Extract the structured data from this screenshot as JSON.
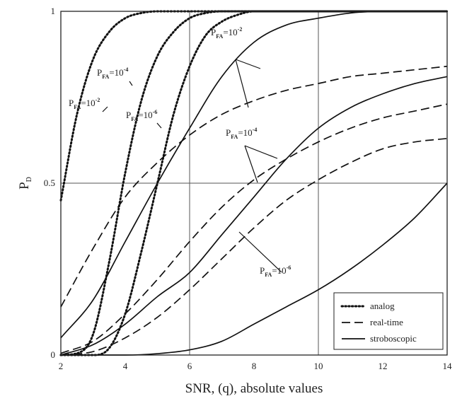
{
  "chart_data": {
    "type": "line",
    "title": "",
    "xlabel": "SNR, (q), absolute values",
    "ylabel": "P",
    "ylabel_subscript": "D",
    "xlim": [
      2,
      14
    ],
    "ylim": [
      0,
      1
    ],
    "xticks": [
      "2",
      "4",
      "6",
      "8",
      "10",
      "12",
      "14"
    ],
    "yticks": [
      "0",
      "0.5",
      "1"
    ],
    "grid": {
      "x": [
        6,
        10
      ],
      "y": [
        0.5
      ]
    },
    "legend": {
      "position": "bottom-right",
      "entries": [
        {
          "label": "analog",
          "style": "dotted"
        },
        {
          "label": "real-time",
          "style": "dashed"
        },
        {
          "label": "stroboscopic",
          "style": "solid"
        }
      ]
    },
    "series": [
      {
        "group": "analog",
        "pfa": "1e-2",
        "style": "dotted",
        "x": [
          2,
          2.5,
          3,
          3.5,
          4,
          4.5,
          5,
          6,
          7,
          8,
          14
        ],
        "y": [
          0.45,
          0.7,
          0.86,
          0.94,
          0.98,
          0.995,
          1.0,
          1.0,
          1.0,
          1.0,
          1.0
        ]
      },
      {
        "group": "analog",
        "pfa": "1e-4",
        "style": "dotted",
        "x": [
          2,
          2.5,
          3,
          3.5,
          4,
          4.5,
          5,
          5.5,
          6,
          6.5,
          7,
          8,
          14
        ],
        "y": [
          0.0,
          0.005,
          0.06,
          0.27,
          0.53,
          0.74,
          0.87,
          0.94,
          0.98,
          0.995,
          1.0,
          1.0,
          1.0
        ]
      },
      {
        "group": "analog",
        "pfa": "1e-6",
        "style": "dotted",
        "x": [
          2,
          3,
          3.5,
          4,
          4.5,
          5,
          5.5,
          6,
          6.5,
          7,
          7.5,
          8,
          9,
          14
        ],
        "y": [
          0.0,
          0.0,
          0.02,
          0.12,
          0.3,
          0.5,
          0.7,
          0.84,
          0.93,
          0.97,
          0.99,
          1.0,
          1.0,
          1.0
        ]
      },
      {
        "group": "real-time",
        "pfa": "1e-2",
        "style": "dashed",
        "x": [
          2,
          3,
          4,
          5,
          6,
          7,
          8,
          9,
          10,
          11,
          12,
          13,
          14
        ],
        "y": [
          0.14,
          0.31,
          0.46,
          0.56,
          0.64,
          0.7,
          0.74,
          0.77,
          0.79,
          0.81,
          0.82,
          0.83,
          0.84
        ]
      },
      {
        "group": "real-time",
        "pfa": "1e-4",
        "style": "dashed",
        "x": [
          2,
          3,
          4,
          5,
          6,
          7,
          8,
          9,
          10,
          11,
          12,
          13,
          14
        ],
        "y": [
          0.005,
          0.04,
          0.12,
          0.22,
          0.33,
          0.43,
          0.51,
          0.57,
          0.62,
          0.66,
          0.69,
          0.71,
          0.73
        ]
      },
      {
        "group": "real-time",
        "pfa": "1e-6",
        "style": "dashed",
        "x": [
          2,
          3,
          4,
          5,
          6,
          7,
          8,
          9,
          10,
          11,
          12,
          13,
          14
        ],
        "y": [
          0.0,
          0.01,
          0.05,
          0.11,
          0.19,
          0.28,
          0.37,
          0.45,
          0.51,
          0.56,
          0.6,
          0.62,
          0.63
        ]
      },
      {
        "group": "stroboscopic",
        "pfa": "1e-2",
        "style": "solid",
        "x": [
          2,
          3,
          4,
          5,
          6,
          7,
          8,
          9,
          10,
          11,
          12,
          14
        ],
        "y": [
          0.05,
          0.16,
          0.33,
          0.5,
          0.66,
          0.81,
          0.91,
          0.96,
          0.98,
          0.995,
          1.0,
          1.0
        ]
      },
      {
        "group": "stroboscopic",
        "pfa": "1e-4",
        "style": "solid",
        "x": [
          2,
          3,
          4,
          5,
          6,
          7,
          8,
          9,
          10,
          11,
          12,
          13,
          14
        ],
        "y": [
          0.0,
          0.03,
          0.09,
          0.17,
          0.24,
          0.35,
          0.46,
          0.57,
          0.66,
          0.72,
          0.76,
          0.79,
          0.81
        ]
      },
      {
        "group": "stroboscopic",
        "pfa": "1e-6",
        "style": "solid",
        "x": [
          2,
          4,
          5,
          6,
          7,
          8,
          9,
          10,
          11,
          12,
          13,
          14
        ],
        "y": [
          0.0,
          0.0,
          0.004,
          0.015,
          0.04,
          0.09,
          0.14,
          0.19,
          0.25,
          0.32,
          0.4,
          0.5
        ]
      }
    ],
    "annotations": [
      {
        "text": "P",
        "sub": "FA",
        "mid": "=10",
        "sup": "-2",
        "group": "analog"
      },
      {
        "text": "P",
        "sub": "FA",
        "mid": "=10",
        "sup": "-4",
        "group": "analog"
      },
      {
        "text": "P",
        "sub": "FA",
        "mid": "=10",
        "sup": "-6",
        "group": "analog"
      },
      {
        "text": "P",
        "sub": "FA",
        "mid": "=10",
        "sup": "-2",
        "group": "real-time/stroboscopic"
      },
      {
        "text": "P",
        "sub": "FA",
        "mid": "=10",
        "sup": "-4",
        "group": "real-time/stroboscopic"
      },
      {
        "text": "P",
        "sub": "FA",
        "mid": "=10",
        "sup": "-6",
        "group": "real-time/stroboscopic"
      }
    ]
  }
}
